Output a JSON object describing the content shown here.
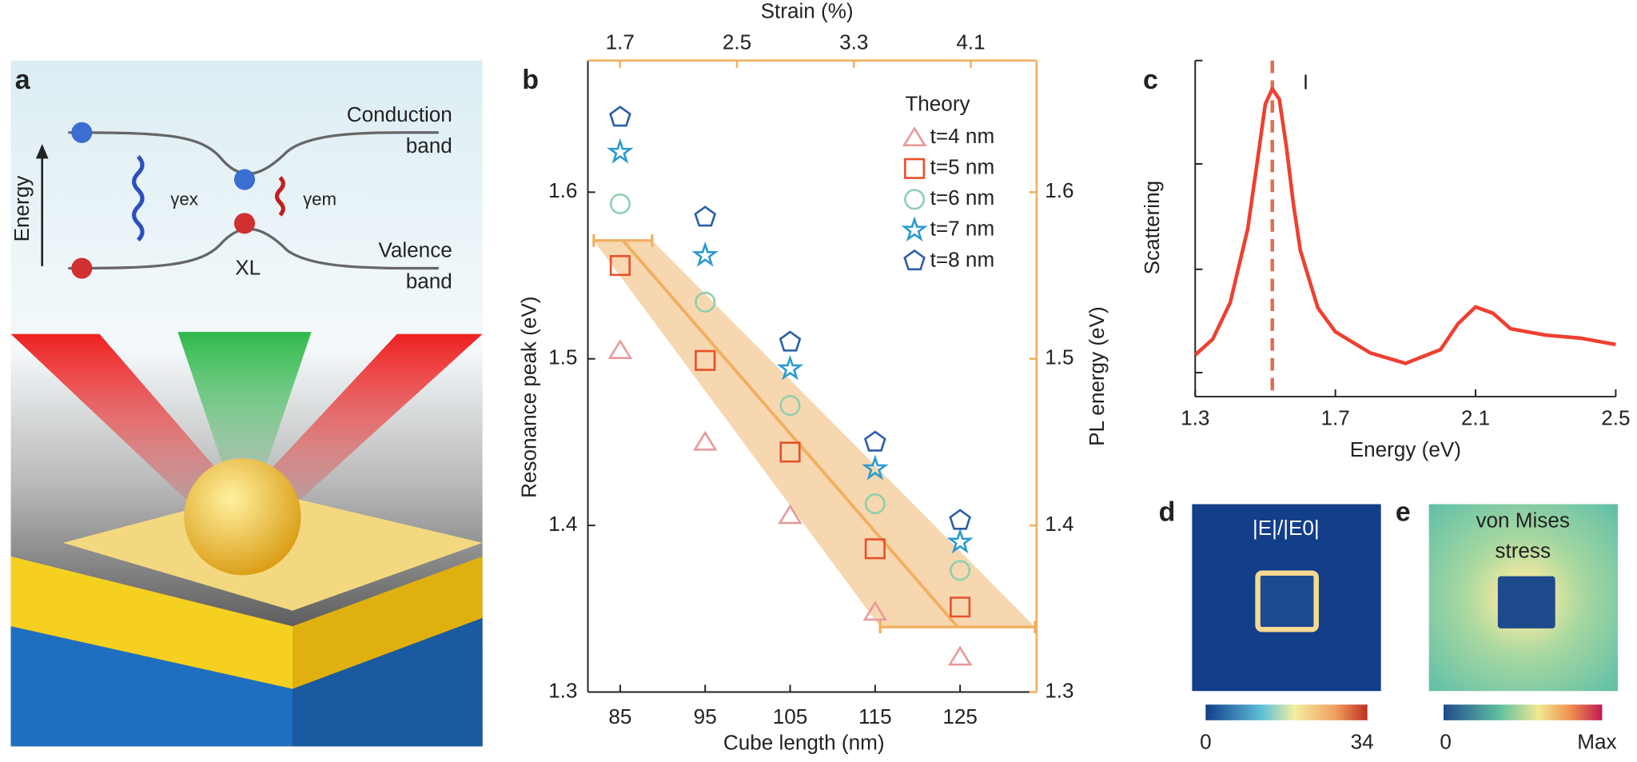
{
  "illustration": {
    "label": "a",
    "energy_label": "Energy",
    "conduction_band": [
      "Conduction",
      "band"
    ],
    "valence_band": [
      "Valence",
      "band"
    ],
    "gamma_ex": "γex",
    "gamma_em": "γem",
    "exciton": "XL"
  },
  "chart_data": [
    {
      "type": "scatter",
      "label": "b",
      "xlabel": "Cube length (nm)",
      "ylabel": "Resonance peak (eV)",
      "y2label": "PL energy (eV)",
      "x2label": "Strain (%)",
      "xlim": [
        81.2,
        134
      ],
      "xticks": [
        85,
        95,
        105,
        115,
        125
      ],
      "ylim": [
        1.3,
        1.679
      ],
      "yticks": [
        1.3,
        1.4,
        1.5,
        1.6
      ],
      "y2lim": [
        1.3,
        1.679
      ],
      "y2ticks": [
        1.3,
        1.4,
        1.5,
        1.6
      ],
      "x2lim": [
        1.48,
        4.55
      ],
      "x2ticks": [
        1.7,
        2.5,
        3.3,
        4.1
      ],
      "legend_title": "Theory",
      "x": [
        85,
        95,
        105,
        115,
        125
      ],
      "series": [
        {
          "name": "t=4 nm",
          "marker": "triangle",
          "color": "#e89a9a",
          "values": [
            1.505,
            1.45,
            1.406,
            1.348,
            1.321
          ]
        },
        {
          "name": "t=5 nm",
          "marker": "square",
          "color": "#e8502a",
          "values": [
            1.556,
            1.499,
            1.444,
            1.386,
            1.351
          ]
        },
        {
          "name": "t=6 nm",
          "marker": "circle",
          "color": "#8fcfb0",
          "values": [
            1.593,
            1.534,
            1.472,
            1.413,
            1.373
          ]
        },
        {
          "name": "t=7 nm",
          "marker": "star",
          "color": "#2a9ad0",
          "values": [
            1.624,
            1.562,
            1.494,
            1.434,
            1.39
          ]
        },
        {
          "name": "t=8 nm",
          "marker": "pentagon",
          "color": "#2a5ea8",
          "values": [
            1.645,
            1.585,
            1.51,
            1.45,
            1.403
          ]
        }
      ],
      "fit": {
        "axis": "y2",
        "xaxis": "x2",
        "x": [
          1.72,
          4.01
        ],
        "values": [
          1.571,
          1.339
        ],
        "xerr": [
          0.2,
          0.53
        ],
        "color": "#f0b060"
      }
    },
    {
      "type": "line",
      "label": "c",
      "xlabel": "Energy (eV)",
      "ylabel": "Scattering",
      "xlim": [
        1.3,
        2.5
      ],
      "xticks": [
        1.3,
        1.7,
        2.1,
        2.5
      ],
      "ylim": [
        0,
        1
      ],
      "x": [
        1.3,
        1.35,
        1.4,
        1.45,
        1.48,
        1.5,
        1.52,
        1.54,
        1.56,
        1.58,
        1.6,
        1.65,
        1.7,
        1.8,
        1.9,
        2.0,
        2.05,
        2.1,
        2.15,
        2.2,
        2.3,
        2.4,
        2.5
      ],
      "series": [
        {
          "color": "#ee4030",
          "values": [
            0.124,
            0.171,
            0.28,
            0.5,
            0.72,
            0.87,
            0.916,
            0.885,
            0.745,
            0.575,
            0.435,
            0.264,
            0.193,
            0.13,
            0.099,
            0.14,
            0.217,
            0.267,
            0.248,
            0.202,
            0.183,
            0.174,
            0.155
          ]
        }
      ],
      "marker_x": 1.52,
      "marker_color": "#e07050",
      "annotation": "I"
    }
  ],
  "maps": [
    {
      "label": "d",
      "title": "|E|/|E0|",
      "colorbar_labels": [
        "0",
        "34"
      ]
    },
    {
      "label": "e",
      "title": [
        "von Mises",
        "stress"
      ],
      "colorbar_labels": [
        "0",
        "Max"
      ]
    }
  ]
}
